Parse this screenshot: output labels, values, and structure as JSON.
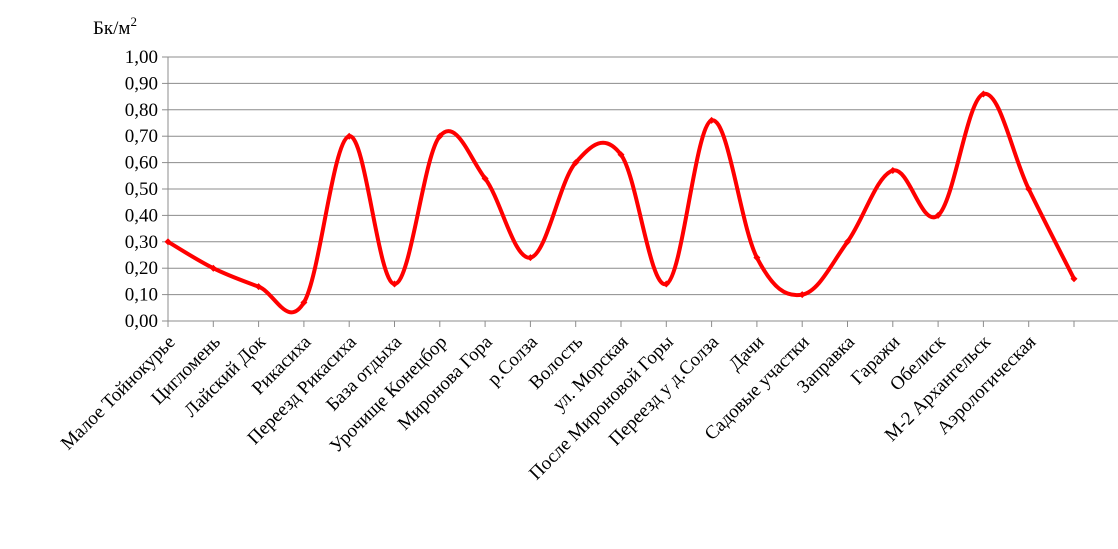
{
  "chart_data": {
    "type": "line",
    "title": "",
    "ylabel": "Бк/м",
    "ylabel_superscript": "2",
    "xlabel": "",
    "ylim": [
      0,
      1.0
    ],
    "ytick_step": 0.1,
    "yticks": [
      "0,00",
      "0,10",
      "0,20",
      "0,30",
      "0,40",
      "0,50",
      "0,60",
      "0,70",
      "0,80",
      "0,90",
      "1,00"
    ],
    "grid": true,
    "legend": "none",
    "line_color": "#ff0000",
    "categories": [
      "Малое Тойнокурье",
      "Цигломень",
      "Лайский Док",
      "Рикасиха",
      "Переезд Рикасиха",
      "База отдыха",
      "Урочище Конецбор",
      "Миронова Гора",
      "р.Солза",
      "Волость",
      "ул. Морская",
      "После Мироновой Горы",
      "Переезд у д.Солза",
      "Дачи",
      "Садовые участки",
      "Заправка",
      "Гаражи",
      "Обелиск",
      "М-2 Архангельск",
      "Аэрологическая",
      ""
    ],
    "values": [
      0.3,
      0.2,
      0.13,
      0.07,
      0.7,
      0.14,
      0.7,
      0.54,
      0.24,
      0.6,
      0.63,
      0.14,
      0.76,
      0.24,
      0.1,
      0.3,
      0.57,
      0.4,
      0.86,
      0.5,
      0.16
    ]
  }
}
